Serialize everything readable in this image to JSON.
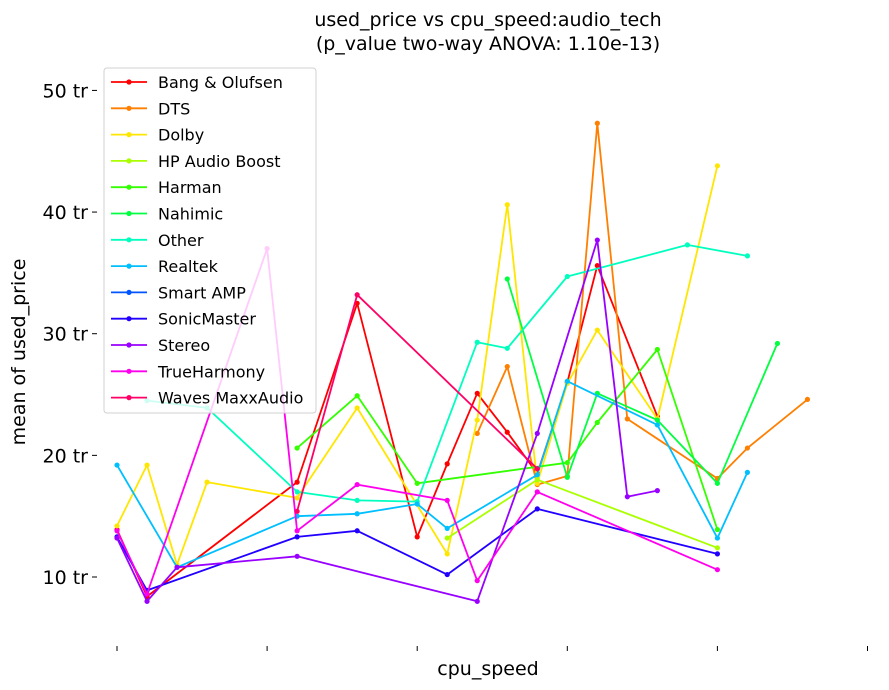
{
  "chart_data": {
    "type": "line",
    "title": "used_price vs cpu_speed:audio_tech",
    "subtitle": "(p_value two-way ANOVA: 1.10e-13)",
    "xlabel": "cpu_speed",
    "ylabel": "mean of used_price",
    "yticks": [
      {
        "value": 10,
        "label": "10 tr"
      },
      {
        "value": 20,
        "label": "20 tr"
      },
      {
        "value": 30,
        "label": "30 tr"
      },
      {
        "value": 40,
        "label": "40 tr"
      },
      {
        "value": 50,
        "label": "50 tr"
      }
    ],
    "xticks": [
      0,
      1,
      2,
      3,
      4,
      5
    ],
    "xlim": [
      -0.08,
      5.05
    ],
    "ylim": [
      4,
      52.5
    ],
    "grid": false,
    "legend_position": "top-left",
    "series": [
      {
        "name": "Bang & Olufsen",
        "color": "#ff0000",
        "points": [
          [
            0.0,
            13.9
          ],
          [
            0.2,
            8.4
          ],
          [
            1.2,
            17.8
          ],
          [
            1.6,
            32.5
          ],
          [
            2.0,
            13.3
          ],
          [
            2.2,
            19.3
          ],
          [
            2.4,
            25.1
          ],
          [
            2.6,
            21.9
          ],
          [
            2.8,
            18.5
          ],
          [
            3.0,
            26.0
          ],
          [
            3.2,
            35.6
          ],
          [
            3.6,
            23.2
          ]
        ]
      },
      {
        "name": "DTS",
        "color": "#ff7f00",
        "points": [
          [
            2.4,
            21.8
          ],
          [
            2.6,
            27.3
          ],
          [
            2.8,
            17.6
          ],
          [
            3.0,
            18.3
          ],
          [
            3.2,
            47.3
          ],
          [
            3.4,
            23.0
          ],
          [
            4.0,
            18.1
          ],
          [
            4.2,
            20.6
          ],
          [
            4.6,
            24.6
          ]
        ]
      },
      {
        "name": "Dolby",
        "color": "#ffe600",
        "points": [
          [
            0.0,
            14.2
          ],
          [
            0.2,
            19.2
          ],
          [
            0.4,
            11.0
          ],
          [
            0.6,
            17.8
          ],
          [
            1.2,
            16.5
          ],
          [
            1.6,
            23.9
          ],
          [
            2.2,
            11.9
          ],
          [
            2.4,
            22.9
          ],
          [
            2.6,
            40.6
          ],
          [
            2.8,
            17.7
          ],
          [
            3.0,
            25.9
          ],
          [
            3.2,
            30.3
          ],
          [
            3.6,
            23.0
          ],
          [
            4.0,
            43.8
          ]
        ]
      },
      {
        "name": "HP Audio Boost",
        "color": "#aaff00",
        "points": [
          [
            2.2,
            13.2
          ],
          [
            2.8,
            18.0
          ],
          [
            4.0,
            12.4
          ]
        ]
      },
      {
        "name": "Harman",
        "color": "#33ff00",
        "points": [
          [
            1.2,
            20.6
          ],
          [
            1.6,
            24.9
          ],
          [
            2.0,
            17.7
          ],
          [
            3.0,
            19.4
          ],
          [
            3.2,
            22.7
          ],
          [
            3.6,
            28.7
          ],
          [
            4.0,
            13.9
          ]
        ]
      },
      {
        "name": "Nahimic",
        "color": "#00ff40",
        "points": [
          [
            2.6,
            34.5
          ],
          [
            3.0,
            18.2
          ],
          [
            3.2,
            25.1
          ],
          [
            3.6,
            22.9
          ],
          [
            4.0,
            17.7
          ],
          [
            4.4,
            29.2
          ]
        ]
      },
      {
        "name": "Other",
        "color": "#00ffbf",
        "points": [
          [
            0.2,
            24.5
          ],
          [
            0.6,
            23.9
          ],
          [
            1.2,
            17.0
          ],
          [
            1.6,
            16.3
          ],
          [
            2.0,
            16.2
          ],
          [
            2.4,
            29.3
          ],
          [
            2.6,
            28.8
          ],
          [
            3.0,
            34.7
          ],
          [
            3.8,
            37.3
          ],
          [
            4.2,
            36.4
          ]
        ]
      },
      {
        "name": "Realtek",
        "color": "#00bfff",
        "points": [
          [
            0.0,
            19.2
          ],
          [
            0.4,
            10.8
          ],
          [
            1.2,
            15.0
          ],
          [
            1.6,
            15.2
          ],
          [
            2.0,
            16.0
          ],
          [
            2.2,
            14.0
          ],
          [
            2.8,
            18.4
          ],
          [
            3.0,
            26.1
          ],
          [
            3.6,
            22.5
          ],
          [
            4.0,
            13.2
          ],
          [
            4.2,
            18.6
          ]
        ]
      },
      {
        "name": "Smart AMP",
        "color": "#0055ff",
        "points": []
      },
      {
        "name": "SonicMaster",
        "color": "#2200ff",
        "points": [
          [
            0.0,
            13.3
          ],
          [
            0.2,
            8.9
          ],
          [
            1.2,
            13.3
          ],
          [
            1.6,
            13.8
          ],
          [
            2.2,
            10.2
          ],
          [
            2.8,
            15.6
          ],
          [
            4.0,
            11.9
          ]
        ]
      },
      {
        "name": "Stereo",
        "color": "#9900ff",
        "points": [
          [
            0.0,
            13.2
          ],
          [
            0.2,
            8.0
          ],
          [
            0.4,
            10.8
          ],
          [
            1.2,
            11.7
          ],
          [
            2.4,
            8.0
          ],
          [
            2.8,
            21.8
          ],
          [
            3.2,
            37.7
          ],
          [
            3.4,
            16.6
          ],
          [
            3.6,
            17.1
          ]
        ]
      },
      {
        "name": "TrueHarmony",
        "color": "#ff00ee",
        "points": [
          [
            0.0,
            13.8
          ],
          [
            0.2,
            8.6
          ],
          [
            1.0,
            37.0
          ],
          [
            1.2,
            13.8
          ],
          [
            1.6,
            17.6
          ],
          [
            2.2,
            16.3
          ],
          [
            2.4,
            9.7
          ],
          [
            2.8,
            17.0
          ],
          [
            4.0,
            10.6
          ]
        ]
      },
      {
        "name": "Waves MaxxAudio",
        "color": "#ff0066",
        "points": [
          [
            1.2,
            15.4
          ],
          [
            1.6,
            33.2
          ],
          [
            2.8,
            18.9
          ]
        ]
      }
    ]
  }
}
